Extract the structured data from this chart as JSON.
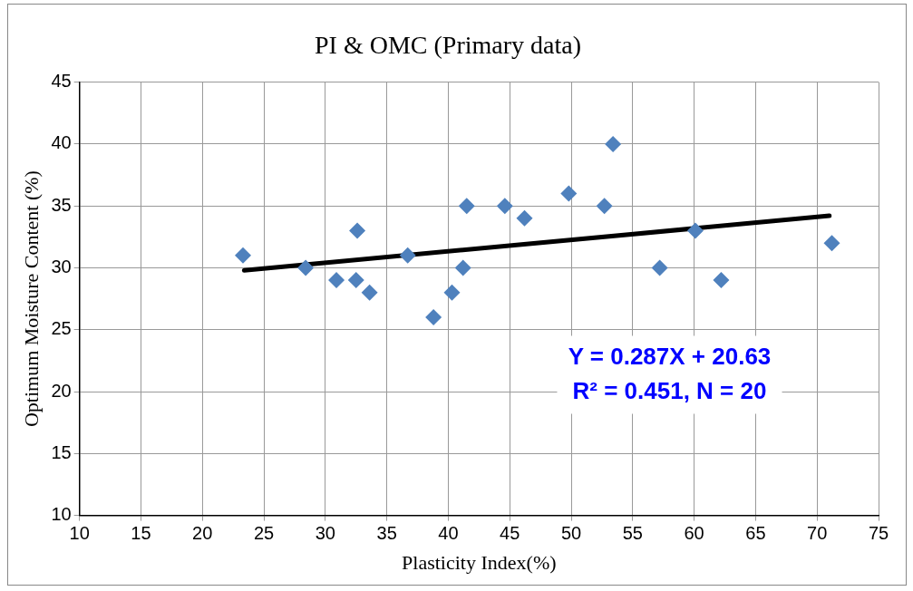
{
  "chart_data": {
    "type": "scatter",
    "title": "PI & OMC (Primary data)",
    "xlabel": "Plasticity Index(%)",
    "ylabel": "Optimum Moisture Content (%)",
    "xlim": [
      10,
      75
    ],
    "xticks": [
      10,
      15,
      20,
      25,
      30,
      35,
      40,
      45,
      50,
      55,
      60,
      65,
      70,
      75
    ],
    "ylim": [
      10,
      45
    ],
    "yticks": [
      10,
      15,
      20,
      25,
      30,
      35,
      40,
      45
    ],
    "grid": true,
    "legend": false,
    "marker": "diamond",
    "series": [
      {
        "color": "#4f81bd",
        "x": [
          23.3,
          28.4,
          30.9,
          32.6,
          32.5,
          33.6,
          36.7,
          38.8,
          40.3,
          41.2,
          41.5,
          44.6,
          46.2,
          49.8,
          52.7,
          53.4,
          57.2,
          60.1,
          62.2,
          71.2
        ],
        "values": [
          31,
          30,
          29,
          33,
          29,
          28,
          31,
          26,
          28,
          30,
          35,
          35,
          34,
          36,
          35,
          40,
          30,
          33,
          29,
          32
        ]
      },
      {
        "type": "line",
        "color": "#000000",
        "marker": "none",
        "line_style": "solid",
        "x": [
          23.4,
          71
        ],
        "values": [
          29.8,
          34.2
        ]
      }
    ],
    "annotations": [
      "Y = 0.287X + 20.63",
      "R² = 0.451, N = 20"
    ]
  }
}
